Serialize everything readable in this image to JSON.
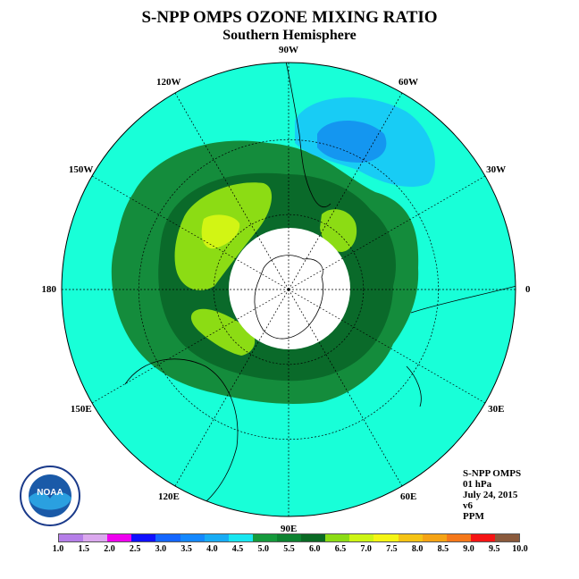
{
  "title": "S-NPP OMPS OZONE MIXING RATIO",
  "subtitle": "Southern Hemisphere",
  "longitude_labels": [
    {
      "text": "90W",
      "lon": -90
    },
    {
      "text": "60W",
      "lon": -60
    },
    {
      "text": "30W",
      "lon": -30
    },
    {
      "text": "0",
      "lon": 0
    },
    {
      "text": "30E",
      "lon": 30
    },
    {
      "text": "60E",
      "lon": 60
    },
    {
      "text": "90E",
      "lon": 90
    },
    {
      "text": "120E",
      "lon": 120
    },
    {
      "text": "150E",
      "lon": 150
    },
    {
      "text": "180",
      "lon": 180
    },
    {
      "text": "150W",
      "lon": -150
    },
    {
      "text": "120W",
      "lon": -120
    }
  ],
  "info": {
    "instrument": "S-NPP OMPS",
    "level": "01 hPa",
    "date": "July 24, 2015",
    "version": "v6",
    "units": "PPM"
  },
  "logo_text": "NOAA",
  "colorbar": {
    "ticks": [
      "1.0",
      "1.5",
      "2.0",
      "2.5",
      "3.0",
      "3.5",
      "4.0",
      "4.5",
      "5.0",
      "5.5",
      "6.0",
      "6.5",
      "7.0",
      "7.5",
      "8.0",
      "8.5",
      "9.0",
      "9.5",
      "10.0"
    ],
    "colors": [
      "#b57ee8",
      "#dba8ee",
      "#ef00ef",
      "#1010ff",
      "#1466ff",
      "#1488ff",
      "#18acf5",
      "#18e6f0",
      "#159a3c",
      "#0d8230",
      "#0a6a24",
      "#8cdc14",
      "#cdf514",
      "#f5f514",
      "#f5c314",
      "#f5a314",
      "#f5781a",
      "#f51414",
      "#8a5a3c"
    ]
  },
  "map_colors": {
    "background": "#18ffd8",
    "band_outer": "#148c3c",
    "band_inner": "#0a6a2a",
    "high": "#8cdc14",
    "peak": "#d2f514",
    "low": "#18ccf5",
    "lower": "#1496f0",
    "missing_pole": "#ffffff"
  }
}
